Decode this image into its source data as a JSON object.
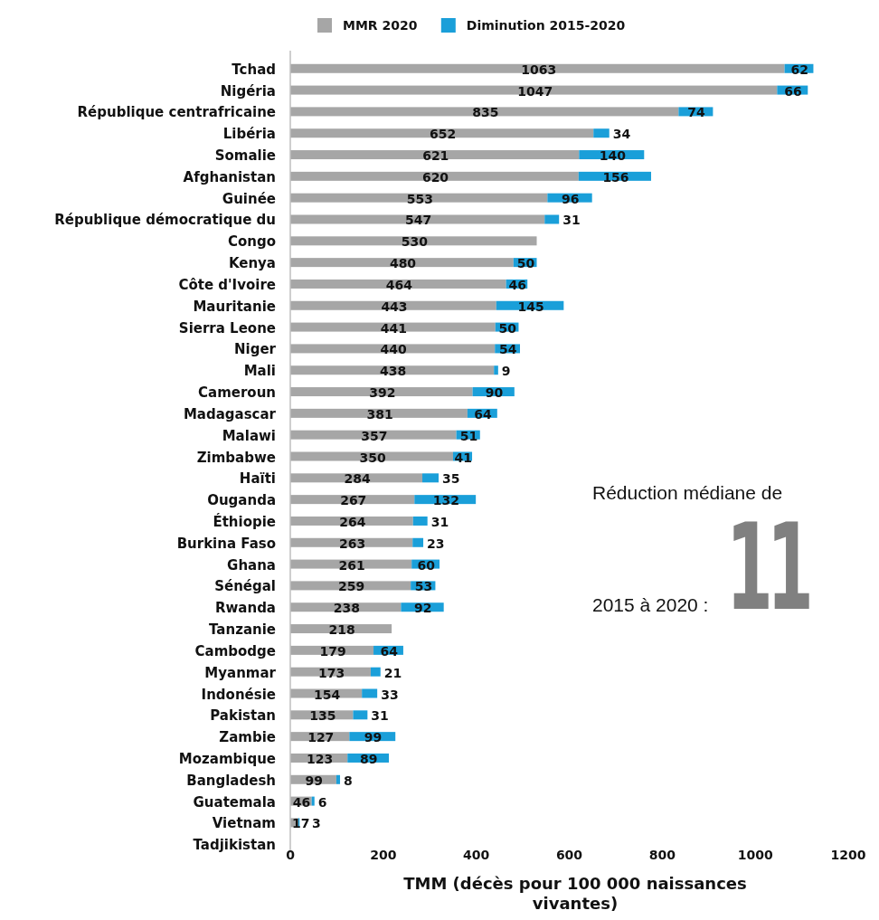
{
  "chart_data": {
    "type": "bar",
    "orientation": "horizontal",
    "stacked": true,
    "data_labels": true,
    "legend": "top",
    "grid": false,
    "xlabel": "TMM (décès pour 100 000 naissances vivantes)",
    "xlim": [
      0,
      1200
    ],
    "xticks": [
      0,
      200,
      400,
      600,
      800,
      1000,
      1200
    ],
    "categories": [
      "Tchad",
      "Nigéria",
      "République centrafricaine",
      "Libéria",
      "Somalie",
      "Afghanistan",
      "Guinée",
      "République démocratique du",
      "Congo",
      "Kenya",
      "Côte d'Ivoire",
      "Mauritanie",
      "Sierra Leone",
      "Niger",
      "Mali",
      "Cameroun",
      "Madagascar",
      "Malawi",
      "Zimbabwe",
      "Haïti",
      "Ouganda",
      "Éthiopie",
      "Burkina Faso",
      "Ghana",
      "Sénégal",
      "Rwanda",
      "Tanzanie",
      "Cambodge",
      "Myanmar",
      "Indonésie",
      "Pakistan",
      "Zambie",
      "Mozambique",
      "Bangladesh",
      "Guatemala",
      "Vietnam",
      "Tadjikistan"
    ],
    "series": [
      {
        "name": "MMR 2020",
        "color": "#a6a6a6",
        "values": [
          1063,
          1047,
          835,
          652,
          621,
          620,
          553,
          547,
          530,
          480,
          464,
          443,
          441,
          440,
          438,
          392,
          381,
          357,
          350,
          284,
          267,
          264,
          263,
          261,
          259,
          238,
          218,
          179,
          173,
          154,
          135,
          127,
          123,
          99,
          46,
          17,
          null
        ]
      },
      {
        "name": "Diminution 2015-2020",
        "color": "#1a9fd9",
        "values": [
          62,
          66,
          74,
          34,
          140,
          156,
          96,
          31,
          null,
          50,
          46,
          145,
          50,
          54,
          9,
          90,
          64,
          51,
          41,
          35,
          132,
          31,
          23,
          60,
          53,
          92,
          null,
          64,
          21,
          33,
          31,
          99,
          89,
          8,
          6,
          3,
          null
        ]
      }
    ],
    "annotations": [
      "Réduction médiane de",
      "2015 à 2020 :",
      "11"
    ]
  }
}
